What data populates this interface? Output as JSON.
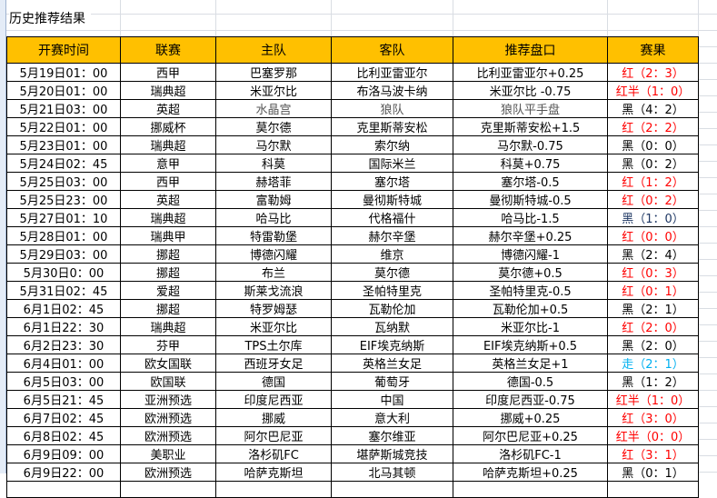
{
  "title": "历史推荐结果",
  "colors": {
    "header_bg": "#ffc000",
    "red": "#ff0000",
    "black": "#000000",
    "navy": "#1f3864",
    "blue": "#00b0f0"
  },
  "headers": [
    "开赛时间",
    "联赛",
    "主队",
    "客队",
    "推荐盘口",
    "赛果"
  ],
  "rows": [
    {
      "time": "5月19日01：00",
      "league": "西甲",
      "home": "巴塞罗那",
      "away": "比利亚雷亚尔",
      "pick": "比利亚雷亚尔+0.25",
      "result": "红（2：3）",
      "rc": "red"
    },
    {
      "time": "5月20日01：00",
      "league": "瑞典超",
      "home": "米亚尔比",
      "away": "布洛马波卡纳",
      "pick": "米亚尔比 -0.75",
      "result": "红半（1：0）",
      "rc": "red"
    },
    {
      "time": "5月21日03：00",
      "league": "英超",
      "home": "水晶宫",
      "away": "狼队",
      "pick": "狼队平手盘",
      "result": "黑（4：2）",
      "rc": "black",
      "gray": true
    },
    {
      "time": "5月22日01：00",
      "league": "挪威杯",
      "home": "莫尔德",
      "away": "克里斯蒂安松",
      "pick": "克里斯蒂安松+1.5",
      "result": "红（2：2）",
      "rc": "red"
    },
    {
      "time": "5月23日01：00",
      "league": "瑞典超",
      "home": "马尔默",
      "away": "索尔纳",
      "pick": "马尔默-0.75",
      "result": "黑（0：0）",
      "rc": "black"
    },
    {
      "time": "5月24日02：45",
      "league": "意甲",
      "home": "科莫",
      "away": "国际米兰",
      "pick": "科莫+0.75",
      "result": "黑（0：2）",
      "rc": "black"
    },
    {
      "time": "5月25日03：00",
      "league": "西甲",
      "home": "赫塔菲",
      "away": "塞尔塔",
      "pick": "塞尔塔-0.5",
      "result": "红（1：2）",
      "rc": "red"
    },
    {
      "time": "5月25日23：00",
      "league": "英超",
      "home": "富勒姆",
      "away": "曼彻斯特城",
      "pick": "曼彻斯特城-0.5",
      "result": "红（0：2）",
      "rc": "red"
    },
    {
      "time": "5月27日01：10",
      "league": "瑞典超",
      "home": "哈马比",
      "away": "代格福什",
      "pick": "哈马比-1.5",
      "result": "黑（1：0）",
      "rc": "navy"
    },
    {
      "time": "5月28日01：00",
      "league": "瑞典甲",
      "home": "特雷勒堡",
      "away": "赫尔辛堡",
      "pick": "赫尔辛堡+0.25",
      "result": "红（0：0）",
      "rc": "red"
    },
    {
      "time": "5月29日03：00",
      "league": "挪超",
      "home": "博德闪耀",
      "away": "维京",
      "pick": "博德闪耀-1",
      "result": "黑（2：4）",
      "rc": "black"
    },
    {
      "time": "5月30日0：00",
      "league": "挪超",
      "home": "布兰",
      "away": "莫尔德",
      "pick": "莫尔德+0.5",
      "result": "红（0：3）",
      "rc": "red"
    },
    {
      "time": "5月31日02：45",
      "league": "爱超",
      "home": "斯莱戈流浪",
      "away": "圣帕特里克",
      "pick": "圣帕特里克-0.5",
      "result": "红（0：1）",
      "rc": "red"
    },
    {
      "time": "6月1日02：45",
      "league": "挪超",
      "home": "特罗姆瑟",
      "away": "瓦勒伦加",
      "pick": "瓦勒伦加+0.5",
      "result": "黑（2：1）",
      "rc": "black"
    },
    {
      "time": "6月1日22：30",
      "league": "瑞典超",
      "home": "米亚尔比",
      "away": "瓦纳默",
      "pick": "米亚尔比-1",
      "result": "红（2：0）",
      "rc": "red"
    },
    {
      "time": "6月2日23：30",
      "league": "芬甲",
      "home": "TPS土尔库",
      "away": "EIF埃克纳斯",
      "pick": "EIF埃克纳斯+0.5",
      "result": "黑（2：0）",
      "rc": "black"
    },
    {
      "time": "6月4日01：00",
      "league": "欧女国联",
      "home": "西班牙女足",
      "away": "英格兰女足",
      "pick": "英格兰女足+1",
      "result": "走（2：1）",
      "rc": "blue"
    },
    {
      "time": "6月5日03：00",
      "league": "欧国联",
      "home": "德国",
      "away": "葡萄牙",
      "pick": "德国-0.5",
      "result": "黑（1：2）",
      "rc": "black"
    },
    {
      "time": "6月5日21：45",
      "league": "亚洲预选",
      "home": "印度尼西亚",
      "away": "中国",
      "pick": "印度尼西亚-0.75",
      "result": "红半（1：0）",
      "rc": "red"
    },
    {
      "time": "6月7日02：45",
      "league": "欧洲预选",
      "home": "挪威",
      "away": "意大利",
      "pick": "挪威+0.25",
      "result": "红（3：0）",
      "rc": "red"
    },
    {
      "time": "6月8日02：45",
      "league": "欧洲预选",
      "home": "阿尔巴尼亚",
      "away": "塞尔维亚",
      "pick": "阿尔巴尼亚+0.25",
      "result": "红半（0：0）",
      "rc": "red"
    },
    {
      "time": "6月9日09：00",
      "league": "美职业",
      "home": "洛杉矶FC",
      "away": "堪萨斯城竞技",
      "pick": "洛杉矶FC-1",
      "result": "红（3：1）",
      "rc": "red"
    },
    {
      "time": "6月9日22：00",
      "league": "欧洲预选",
      "home": "哈萨克斯坦",
      "away": "北马其顿",
      "pick": "哈萨克斯坦+0.25",
      "result": "黑（0：1）",
      "rc": "black"
    }
  ]
}
